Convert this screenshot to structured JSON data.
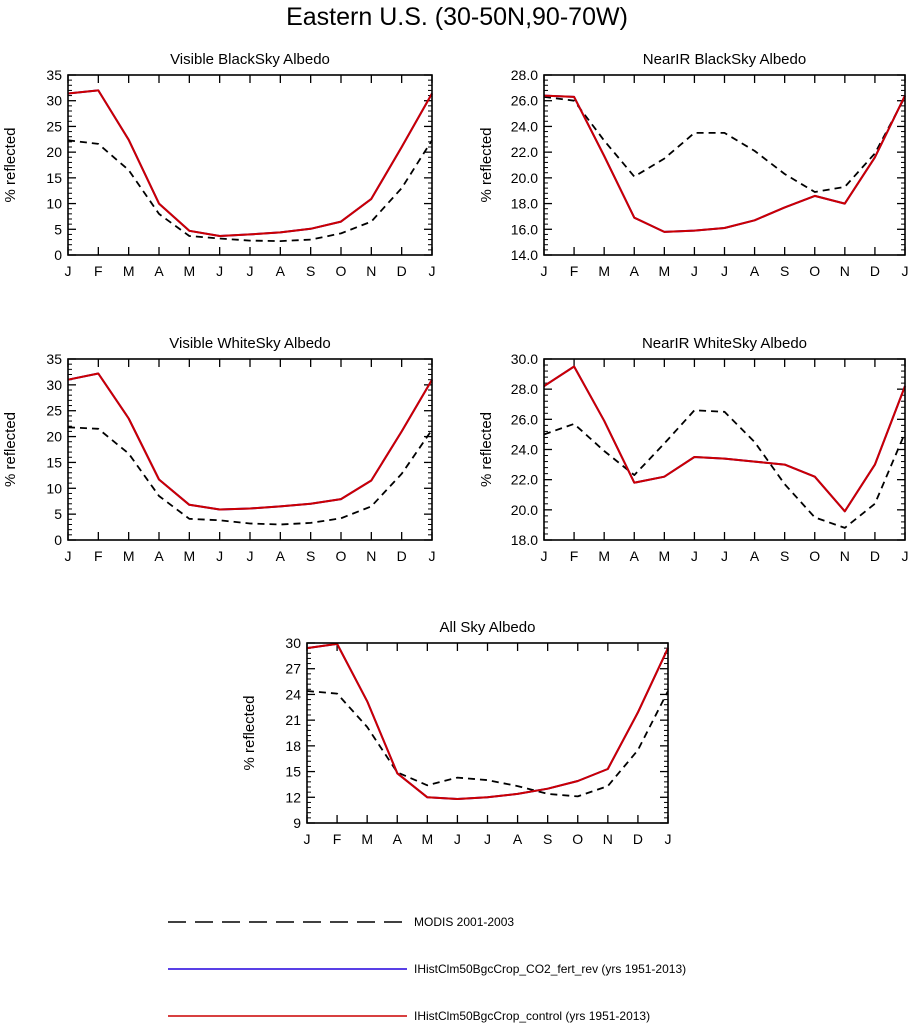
{
  "figure": {
    "title": "Eastern U.S. (30-50N,90-70W)"
  },
  "legend": [
    {
      "label": "MODIS 2001-2003",
      "color": "#000000",
      "dash": true
    },
    {
      "label": "IHistClm50BgcCrop_CO2_fert_rev (yrs 1951-2013)",
      "color": "#2200dd",
      "dash": false
    },
    {
      "label": "IHistClm50BgcCrop_control (yrs 1951-2013)",
      "color": "#cc0000",
      "dash": false
    }
  ],
  "chart_data": [
    {
      "type": "line",
      "title": "Visible BlackSky Albedo",
      "ylabel": "% reflected",
      "categories": [
        "J",
        "F",
        "M",
        "A",
        "M",
        "J",
        "J",
        "A",
        "S",
        "O",
        "N",
        "D",
        "J"
      ],
      "ylim": [
        0,
        35
      ],
      "yticks": [
        "0",
        "5",
        "10",
        "15",
        "20",
        "25",
        "30",
        "35"
      ],
      "grid": false,
      "series": [
        {
          "name": "MODIS 2001-2003",
          "values": [
            22.3,
            21.6,
            16.5,
            8.0,
            3.7,
            3.2,
            2.8,
            2.7,
            3.0,
            4.2,
            6.5,
            13.0,
            22.3
          ]
        },
        {
          "name": "IHistClm50BgcCrop_CO2_fert_rev (yrs 1951-2013)",
          "values": [
            31.4,
            32.0,
            22.4,
            10.0,
            4.7,
            3.7,
            4.0,
            4.4,
            5.1,
            6.5,
            10.9,
            21.0,
            31.4
          ]
        },
        {
          "name": "IHistClm50BgcCrop_control (yrs 1951-2013)",
          "values": [
            31.4,
            32.0,
            22.4,
            10.0,
            4.7,
            3.7,
            4.0,
            4.4,
            5.1,
            6.5,
            10.9,
            21.0,
            31.4
          ]
        }
      ]
    },
    {
      "type": "line",
      "title": "NearIR BlackSky Albedo",
      "ylabel": "% reflected",
      "categories": [
        "J",
        "F",
        "M",
        "A",
        "M",
        "J",
        "J",
        "A",
        "S",
        "O",
        "N",
        "D",
        "J"
      ],
      "ylim": [
        14,
        28
      ],
      "yticks": [
        "14.0",
        "16.0",
        "18.0",
        "20.0",
        "22.0",
        "24.0",
        "26.0",
        "28.0"
      ],
      "grid": false,
      "series": [
        {
          "name": "MODIS 2001-2003",
          "values": [
            26.3,
            26.0,
            22.9,
            20.1,
            21.5,
            23.5,
            23.5,
            22.1,
            20.3,
            18.9,
            19.3,
            21.9,
            26.3
          ]
        },
        {
          "name": "IHistClm50BgcCrop_CO2_fert_rev (yrs 1951-2013)",
          "values": [
            26.4,
            26.3,
            21.7,
            16.9,
            15.8,
            15.9,
            16.1,
            16.7,
            17.7,
            18.6,
            18.0,
            21.6,
            26.4
          ]
        },
        {
          "name": "IHistClm50BgcCrop_control (yrs 1951-2013)",
          "values": [
            26.4,
            26.3,
            21.7,
            16.9,
            15.8,
            15.9,
            16.1,
            16.7,
            17.7,
            18.6,
            18.0,
            21.6,
            26.4
          ]
        }
      ]
    },
    {
      "type": "line",
      "title": "Visible WhiteSky Albedo",
      "ylabel": "% reflected",
      "categories": [
        "J",
        "F",
        "M",
        "A",
        "M",
        "J",
        "J",
        "A",
        "S",
        "O",
        "N",
        "D",
        "J"
      ],
      "ylim": [
        0,
        35
      ],
      "yticks": [
        "0",
        "5",
        "10",
        "15",
        "20",
        "25",
        "30",
        "35"
      ],
      "grid": false,
      "series": [
        {
          "name": "MODIS 2001-2003",
          "values": [
            21.8,
            21.5,
            16.7,
            8.5,
            4.1,
            3.8,
            3.2,
            3.0,
            3.3,
            4.2,
            6.5,
            12.8,
            21.3
          ]
        },
        {
          "name": "IHistClm50BgcCrop_CO2_fert_rev (yrs 1951-2013)",
          "values": [
            31.0,
            32.2,
            23.5,
            11.7,
            6.8,
            5.9,
            6.1,
            6.5,
            7.0,
            7.9,
            11.5,
            21.0,
            31.0
          ]
        },
        {
          "name": "IHistClm50BgcCrop_control (yrs 1951-2013)",
          "values": [
            31.0,
            32.2,
            23.5,
            11.7,
            6.8,
            5.9,
            6.1,
            6.5,
            7.0,
            7.9,
            11.5,
            21.0,
            31.0
          ]
        }
      ]
    },
    {
      "type": "line",
      "title": "NearIR WhiteSky Albedo",
      "ylabel": "% reflected",
      "categories": [
        "J",
        "F",
        "M",
        "A",
        "M",
        "J",
        "J",
        "A",
        "S",
        "O",
        "N",
        "D",
        "J"
      ],
      "ylim": [
        18,
        30
      ],
      "yticks": [
        "18.0",
        "20.0",
        "22.0",
        "24.0",
        "26.0",
        "28.0",
        "30.0"
      ],
      "grid": false,
      "series": [
        {
          "name": "MODIS 2001-2003",
          "values": [
            25.0,
            25.7,
            23.9,
            22.3,
            24.4,
            26.6,
            26.5,
            24.5,
            21.7,
            19.5,
            18.8,
            20.4,
            25.1
          ]
        },
        {
          "name": "IHistClm50BgcCrop_CO2_fert_rev (yrs 1951-2013)",
          "values": [
            28.2,
            29.5,
            25.9,
            21.8,
            22.2,
            23.5,
            23.4,
            23.2,
            23.0,
            22.2,
            19.9,
            23.0,
            28.2
          ]
        },
        {
          "name": "IHistClm50BgcCrop_control (yrs 1951-2013)",
          "values": [
            28.2,
            29.5,
            25.9,
            21.8,
            22.2,
            23.5,
            23.4,
            23.2,
            23.0,
            22.2,
            19.9,
            23.0,
            28.2
          ]
        }
      ]
    },
    {
      "type": "line",
      "title": "All Sky Albedo",
      "ylabel": "% reflected",
      "categories": [
        "J",
        "F",
        "M",
        "A",
        "M",
        "J",
        "J",
        "A",
        "S",
        "O",
        "N",
        "D",
        "J"
      ],
      "ylim": [
        9,
        30
      ],
      "yticks": [
        "9",
        "12",
        "15",
        "18",
        "21",
        "24",
        "27",
        "30"
      ],
      "grid": false,
      "series": [
        {
          "name": "MODIS 2001-2003",
          "values": [
            24.4,
            24.1,
            20.2,
            14.9,
            13.4,
            14.3,
            14.0,
            13.3,
            12.4,
            12.1,
            13.3,
            17.5,
            24.4
          ]
        },
        {
          "name": "IHistClm50BgcCrop_CO2_fert_rev (yrs 1951-2013)",
          "values": [
            29.4,
            29.9,
            23.2,
            14.8,
            12.0,
            11.8,
            12.0,
            12.4,
            13.0,
            13.9,
            15.3,
            21.9,
            29.4
          ]
        },
        {
          "name": "IHistClm50BgcCrop_control (yrs 1951-2013)",
          "values": [
            29.4,
            29.9,
            23.2,
            14.8,
            12.0,
            11.8,
            12.0,
            12.4,
            13.0,
            13.9,
            15.3,
            21.9,
            29.4
          ]
        }
      ]
    }
  ]
}
